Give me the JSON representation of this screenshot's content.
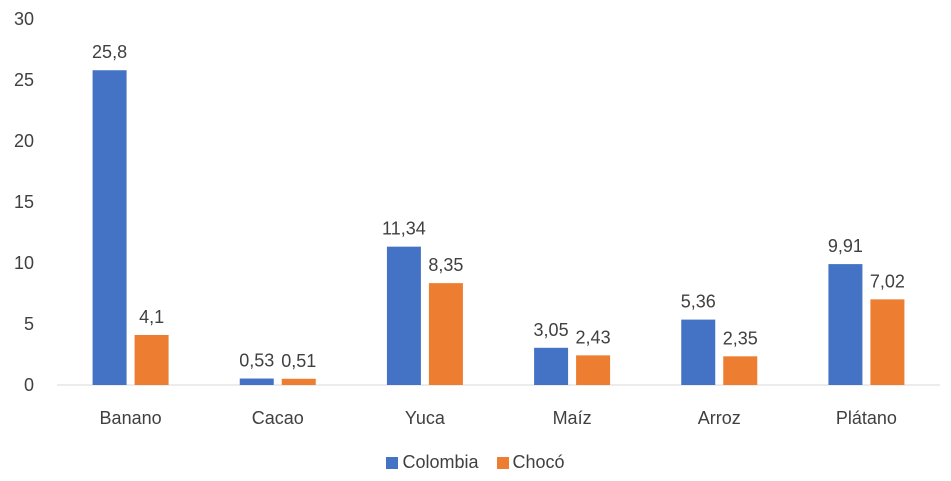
{
  "chart_data": {
    "type": "bar",
    "categories": [
      "Banano",
      "Cacao",
      "Yuca",
      "Maíz",
      "Arroz",
      "Plátano"
    ],
    "series": [
      {
        "name": "Colombia",
        "color": "#4472C4",
        "values": [
          25.8,
          0.53,
          11.34,
          3.05,
          5.36,
          9.91
        ],
        "labels": [
          "25,8",
          "0,53",
          "11,34",
          "3,05",
          "5,36",
          "9,91"
        ]
      },
      {
        "name": "Chocó",
        "color": "#ED7D31",
        "values": [
          4.1,
          0.51,
          8.35,
          2.43,
          2.35,
          7.02
        ],
        "labels": [
          "4,1",
          "0,51",
          "8,35",
          "2,43",
          "2,35",
          "7,02"
        ]
      }
    ],
    "ylim": [
      0,
      30
    ],
    "yticks": [
      0,
      5,
      10,
      15,
      20,
      25,
      30
    ],
    "grid": false,
    "legend": "bottom"
  }
}
